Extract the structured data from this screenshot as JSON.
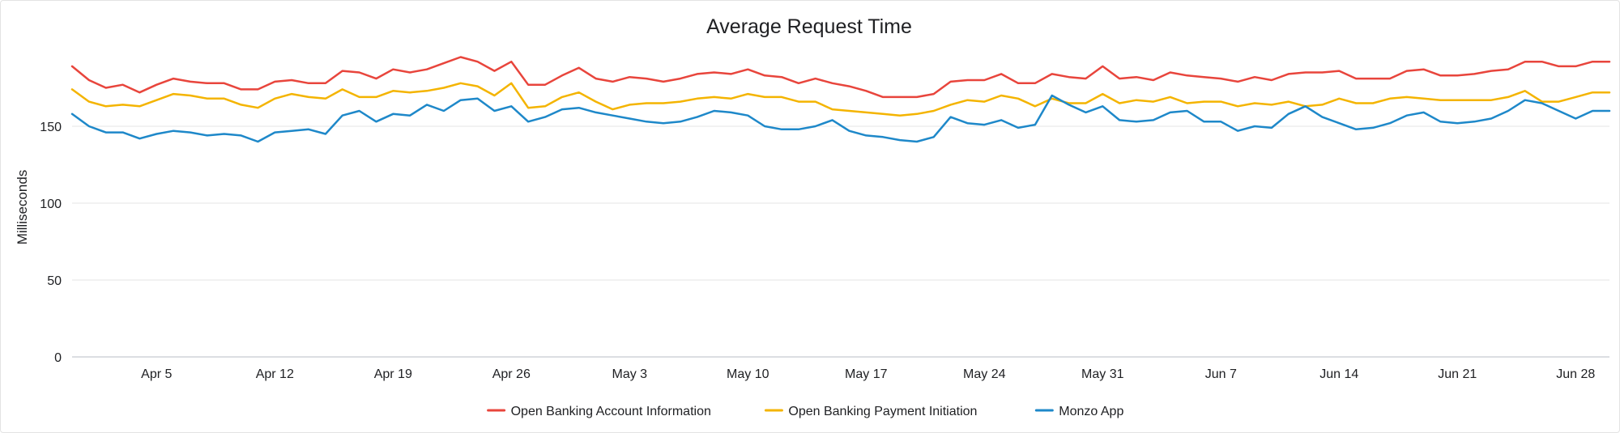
{
  "chart_data": {
    "type": "line",
    "title": "Average Request Time",
    "xlabel": "",
    "ylabel": "Milliseconds",
    "ylim": [
      0,
      200
    ],
    "yticks": [
      0,
      50,
      100,
      150
    ],
    "grid": true,
    "legend_position": "bottom",
    "x_start": "2021-03-31",
    "x_end": "2021-06-30",
    "x_ticks": [
      {
        "date": "2021-04-05",
        "label": "Apr 5"
      },
      {
        "date": "2021-04-12",
        "label": "Apr 12"
      },
      {
        "date": "2021-04-19",
        "label": "Apr 19"
      },
      {
        "date": "2021-04-26",
        "label": "Apr 26"
      },
      {
        "date": "2021-05-03",
        "label": "May 3"
      },
      {
        "date": "2021-05-10",
        "label": "May 10"
      },
      {
        "date": "2021-05-17",
        "label": "May 17"
      },
      {
        "date": "2021-05-24",
        "label": "May 24"
      },
      {
        "date": "2021-05-31",
        "label": "May 31"
      },
      {
        "date": "2021-06-07",
        "label": "Jun 7"
      },
      {
        "date": "2021-06-14",
        "label": "Jun 14"
      },
      {
        "date": "2021-06-21",
        "label": "Jun 21"
      },
      {
        "date": "2021-06-28",
        "label": "Jun 28"
      }
    ],
    "x": [
      "2021-03-31",
      "2021-04-01",
      "2021-04-02",
      "2021-04-03",
      "2021-04-04",
      "2021-04-05",
      "2021-04-06",
      "2021-04-07",
      "2021-04-08",
      "2021-04-09",
      "2021-04-10",
      "2021-04-11",
      "2021-04-12",
      "2021-04-13",
      "2021-04-14",
      "2021-04-15",
      "2021-04-16",
      "2021-04-17",
      "2021-04-18",
      "2021-04-19",
      "2021-04-20",
      "2021-04-21",
      "2021-04-22",
      "2021-04-23",
      "2021-04-24",
      "2021-04-25",
      "2021-04-26",
      "2021-04-27",
      "2021-04-28",
      "2021-04-29",
      "2021-04-30",
      "2021-05-01",
      "2021-05-02",
      "2021-05-03",
      "2021-05-04",
      "2021-05-05",
      "2021-05-06",
      "2021-05-07",
      "2021-05-08",
      "2021-05-09",
      "2021-05-10",
      "2021-05-11",
      "2021-05-12",
      "2021-05-13",
      "2021-05-14",
      "2021-05-15",
      "2021-05-16",
      "2021-05-17",
      "2021-05-18",
      "2021-05-19",
      "2021-05-20",
      "2021-05-21",
      "2021-05-22",
      "2021-05-23",
      "2021-05-24",
      "2021-05-25",
      "2021-05-26",
      "2021-05-27",
      "2021-05-28",
      "2021-05-29",
      "2021-05-30",
      "2021-05-31",
      "2021-06-01",
      "2021-06-02",
      "2021-06-03",
      "2021-06-04",
      "2021-06-05",
      "2021-06-06",
      "2021-06-07",
      "2021-06-08",
      "2021-06-09",
      "2021-06-10",
      "2021-06-11",
      "2021-06-12",
      "2021-06-13",
      "2021-06-14",
      "2021-06-15",
      "2021-06-16",
      "2021-06-17",
      "2021-06-18",
      "2021-06-19",
      "2021-06-20",
      "2021-06-21",
      "2021-06-22",
      "2021-06-23",
      "2021-06-24",
      "2021-06-25",
      "2021-06-26",
      "2021-06-27",
      "2021-06-28",
      "2021-06-29",
      "2021-06-30"
    ],
    "series": [
      {
        "name": "Open Banking Account Information",
        "color": "#e8453c",
        "values": [
          189,
          180,
          175,
          177,
          172,
          177,
          181,
          179,
          178,
          178,
          174,
          174,
          179,
          180,
          178,
          178,
          186,
          185,
          181,
          187,
          185,
          187,
          191,
          195,
          192,
          186,
          192,
          177,
          177,
          183,
          188,
          181,
          179,
          182,
          181,
          179,
          181,
          184,
          185,
          184,
          187,
          183,
          182,
          178,
          181,
          178,
          176,
          173,
          169,
          169,
          169,
          171,
          179,
          180,
          180,
          184,
          178,
          178,
          184,
          182,
          181,
          189,
          181,
          182,
          180,
          185,
          183,
          182,
          181,
          179,
          182,
          180,
          184,
          185,
          185,
          186,
          181,
          181,
          181,
          186,
          187,
          183,
          183,
          184,
          186,
          187,
          192,
          192,
          189,
          189,
          192,
          192
        ]
      },
      {
        "name": "Open Banking Payment Initiation",
        "color": "#f4b400",
        "values": [
          174,
          166,
          163,
          164,
          163,
          167,
          171,
          170,
          168,
          168,
          164,
          162,
          168,
          171,
          169,
          168,
          174,
          169,
          169,
          173,
          172,
          173,
          175,
          178,
          176,
          170,
          178,
          162,
          163,
          169,
          172,
          166,
          161,
          164,
          165,
          165,
          166,
          168,
          169,
          168,
          171,
          169,
          169,
          166,
          166,
          161,
          160,
          159,
          158,
          157,
          158,
          160,
          164,
          167,
          166,
          170,
          168,
          163,
          168,
          165,
          165,
          171,
          165,
          167,
          166,
          169,
          165,
          166,
          166,
          163,
          165,
          164,
          166,
          163,
          164,
          168,
          165,
          165,
          168,
          169,
          168,
          167,
          167,
          167,
          167,
          169,
          173,
          166,
          166,
          169,
          172,
          172
        ]
      },
      {
        "name": "Monzo App",
        "color": "#1e88c9",
        "values": [
          158,
          150,
          146,
          146,
          142,
          145,
          147,
          146,
          144,
          145,
          144,
          140,
          146,
          147,
          148,
          145,
          157,
          160,
          153,
          158,
          157,
          164,
          160,
          167,
          168,
          160,
          163,
          153,
          156,
          161,
          162,
          159,
          157,
          155,
          153,
          152,
          153,
          156,
          160,
          159,
          157,
          150,
          148,
          148,
          150,
          154,
          147,
          144,
          143,
          141,
          140,
          143,
          156,
          152,
          151,
          154,
          149,
          151,
          170,
          164,
          159,
          163,
          154,
          153,
          154,
          159,
          160,
          153,
          153,
          147,
          150,
          149,
          158,
          163,
          156,
          152,
          148,
          149,
          152,
          157,
          159,
          153,
          152,
          153,
          155,
          160,
          167,
          165,
          160,
          155,
          160,
          160
        ]
      }
    ]
  }
}
